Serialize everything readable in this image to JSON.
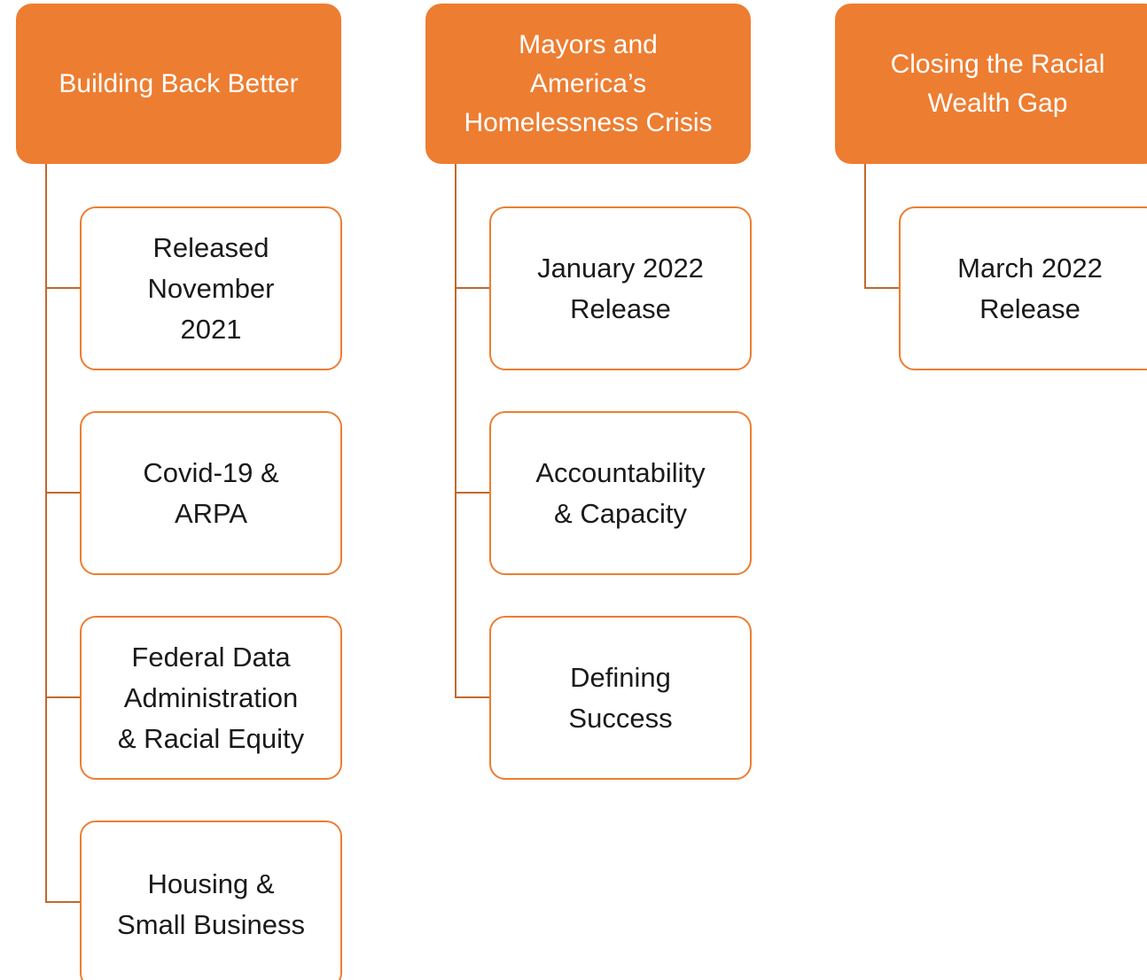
{
  "columns": [
    {
      "header": [
        "Building Back Better"
      ],
      "items": [
        [
          "Released",
          "November",
          "2021"
        ],
        [
          "Covid-19 &",
          "ARPA"
        ],
        [
          "Federal Data",
          "Administration",
          "& Racial Equity"
        ],
        [
          "Housing &",
          "Small Business"
        ]
      ]
    },
    {
      "header": [
        "Mayors and",
        "America’s",
        "Homelessness Crisis"
      ],
      "items": [
        [
          "January 2022",
          "Release"
        ],
        [
          "Accountability",
          "& Capacity"
        ],
        [
          "Defining",
          "Success"
        ]
      ]
    },
    {
      "header": [
        "Closing the Racial",
        "Wealth Gap"
      ],
      "items": [
        [
          "March 2022",
          "Release"
        ]
      ]
    }
  ]
}
